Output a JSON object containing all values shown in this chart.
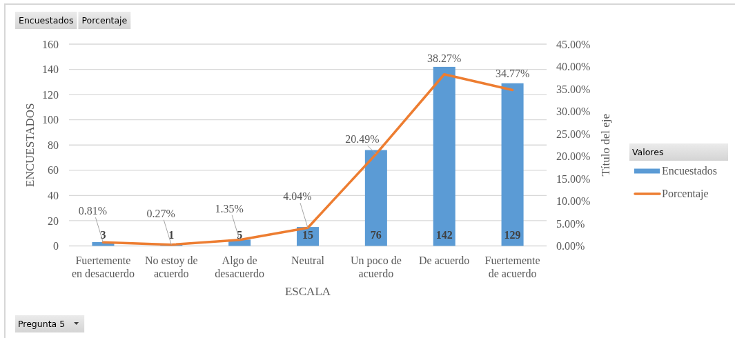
{
  "chart_data": {
    "type": "bar",
    "xlabel": "ESCALA",
    "ylabel": "ENCUESTADOS",
    "y2label": "Título del eje",
    "legend_title": "Valores",
    "annotations": [
      "Encuestados",
      "Porcentaje",
      "Pregunta 5"
    ],
    "categories": [
      "Fuertemente en desacuerdo",
      "No estoy de acuerdo",
      "Algo de desacuerdo",
      "Neutral",
      "Un poco de acuerdo",
      "De acuerdo",
      "Fuertemente de acuerdo"
    ],
    "series": [
      {
        "name": "Encuestados",
        "color": "#5b9bd5",
        "values": [
          3,
          1,
          5,
          15,
          76,
          142,
          129
        ],
        "value_labels": [
          "3",
          "1",
          "5",
          "15",
          "76",
          "142",
          "129"
        ]
      },
      {
        "name": "Porcentaje",
        "type": "line",
        "axis": "y2",
        "color": "#ed7d31",
        "values": [
          0.81,
          0.27,
          1.35,
          4.04,
          20.49,
          38.27,
          34.77
        ],
        "value_labels": [
          "0.81%",
          "0.27%",
          "1.35%",
          "4.04%",
          "20.49%",
          "38.27%",
          "34.77%"
        ]
      }
    ],
    "ylim": [
      0,
      160
    ],
    "yticks": [
      0,
      20,
      40,
      60,
      80,
      100,
      120,
      140,
      160
    ],
    "y2lim": [
      0,
      45
    ],
    "y2ticks": [
      {
        "value": 0,
        "label": "0.00%"
      },
      {
        "value": 5,
        "label": "5.00%"
      },
      {
        "value": 10,
        "label": "10.00%"
      },
      {
        "value": 15,
        "label": "15.00%"
      },
      {
        "value": 20,
        "label": "20.00%"
      },
      {
        "value": 25,
        "label": "25.00%"
      },
      {
        "value": 30,
        "label": "30.00%"
      },
      {
        "value": 35,
        "label": "35.00%"
      },
      {
        "value": 40,
        "label": "40.00%"
      },
      {
        "value": 45,
        "label": "45.00%"
      }
    ],
    "grid": "y",
    "legend": "right"
  }
}
